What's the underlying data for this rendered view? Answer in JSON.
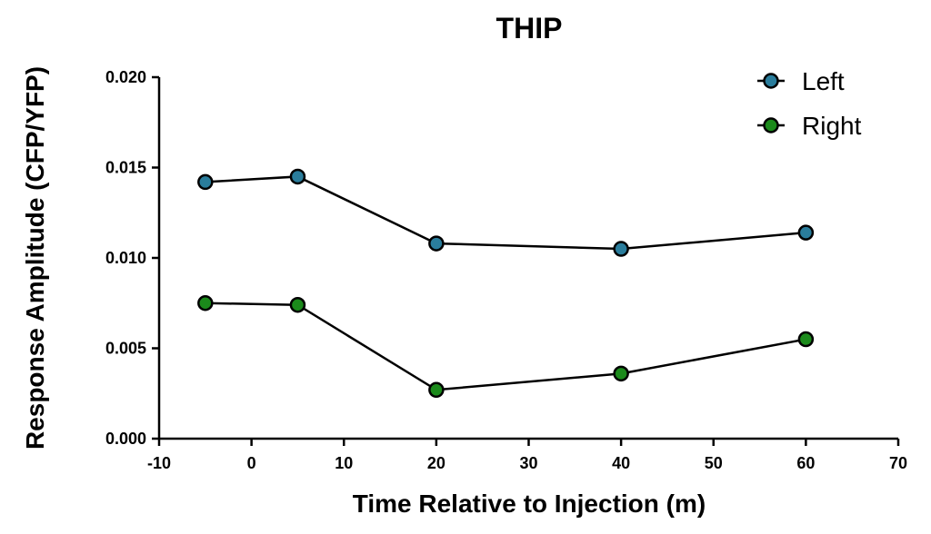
{
  "chart_data": {
    "type": "line",
    "title": "THIP",
    "xlabel": "Time Relative to Injection (m)",
    "ylabel": "Response Amplitude (CFP/YFP)",
    "xlim": [
      -10,
      70
    ],
    "ylim": [
      0,
      0.02
    ],
    "xticks": [
      "-10",
      "0",
      "10",
      "20",
      "30",
      "40",
      "50",
      "60",
      "70"
    ],
    "yticks": [
      "0.000",
      "0.005",
      "0.010",
      "0.015",
      "0.020"
    ],
    "grid": false,
    "legend_position": "top-right",
    "x": [
      -5,
      5,
      20,
      40,
      60
    ],
    "series": [
      {
        "name": "Left",
        "color": "#2a7d9c",
        "values": [
          0.0142,
          0.0145,
          0.0108,
          0.0105,
          0.0114
        ]
      },
      {
        "name": "Right",
        "color": "#1b8a1b",
        "values": [
          0.0075,
          0.0074,
          0.0027,
          0.0036,
          0.0055
        ]
      }
    ]
  }
}
